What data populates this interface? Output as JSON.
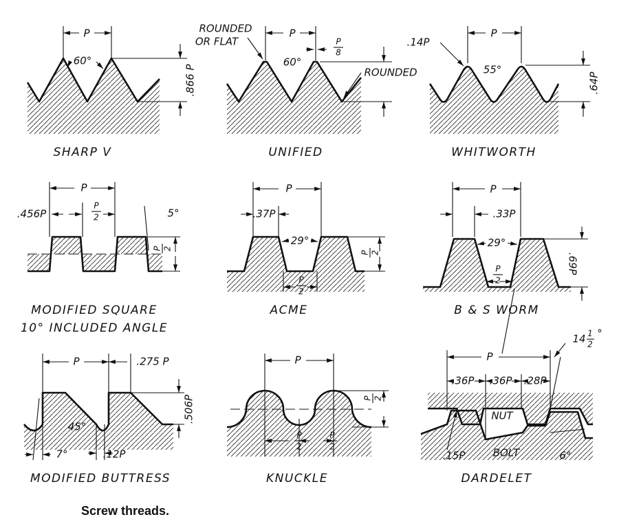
{
  "panels": [
    {
      "name": [
        "SHARP V"
      ],
      "labels": [
        "P",
        "60°",
        ".866 P"
      ]
    },
    {
      "name": [
        "UNIFIED"
      ],
      "labels": [
        "ROUNDED",
        "OR FLAT",
        "P",
        "60°",
        {
          "num": "P",
          "den": "8"
        },
        "ROUNDED"
      ]
    },
    {
      "name": [
        "WHITWORTH"
      ],
      "labels": [
        ".14P",
        "P",
        "55°",
        ".64P"
      ]
    },
    {
      "name": [
        "MODIFIED SQUARE",
        "10° INCLUDED ANGLE"
      ],
      "labels": [
        "P",
        ".456P",
        {
          "num": "P",
          "den": "2"
        },
        "5°",
        {
          "num": "P",
          "den": "2"
        }
      ]
    },
    {
      "name": [
        "ACME"
      ],
      "labels": [
        "P",
        ".37P",
        "29°",
        {
          "num": "P",
          "den": "2"
        },
        {
          "num": "P",
          "den": "2"
        }
      ]
    },
    {
      "name": [
        "B & S WORM"
      ],
      "labels": [
        "P",
        ".33P",
        "29°",
        {
          "num": "P",
          "den": "2"
        },
        ".69P"
      ]
    },
    {
      "name": [
        "MODIFIED BUTTRESS"
      ],
      "labels": [
        "P",
        ".275 P",
        ".506P",
        "45°",
        "7°",
        ".12P"
      ]
    },
    {
      "name": [
        "KNUCKLE"
      ],
      "labels": [
        "P",
        {
          "num": "P",
          "den": "2"
        },
        {
          "num": "P",
          "den": "2"
        },
        {
          "num": "P",
          "den": "2"
        }
      ]
    },
    {
      "name": [
        "DARDELET"
      ],
      "labels": [
        "P",
        {
          "whole": "14",
          "num": "1",
          "den": "2",
          "unit": "°"
        },
        ".36P",
        ".36P",
        ".28P",
        "NUT",
        "BOLT",
        ".15P",
        "6°"
      ]
    }
  ],
  "caption": "Screw threads."
}
